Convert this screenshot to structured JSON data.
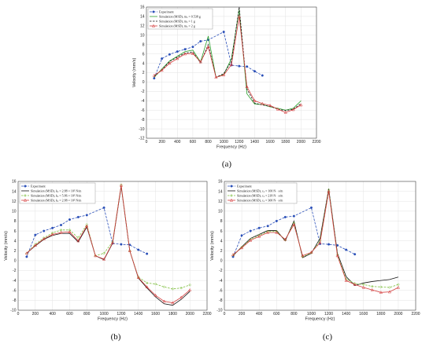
{
  "chart_data": [
    {
      "type": "line",
      "panel": "(a)",
      "xlabel": "Frequency (Hz)",
      "ylabel": "Velocity (mm/s)",
      "xlim": [
        0,
        2200
      ],
      "ylim": [
        -12,
        16
      ],
      "xticks": [
        0,
        200,
        400,
        600,
        800,
        1000,
        1200,
        1400,
        1600,
        1800,
        2000,
        2200
      ],
      "yticks": [
        -12,
        -10,
        -8,
        -6,
        -4,
        -2,
        0,
        2,
        4,
        6,
        8,
        10,
        12,
        14,
        16
      ],
      "grid": true,
      "legend": "top-left",
      "series": [
        {
          "name": "Experiment",
          "color": "#2a4fb8",
          "dash": "3,1.5",
          "marker": "circle",
          "x": [
            100,
            200,
            300,
            400,
            500,
            600,
            700,
            800,
            1000,
            1100,
            1200,
            1300,
            1400,
            1500
          ],
          "y": [
            0.8,
            5.0,
            5.9,
            6.5,
            7.0,
            7.5,
            8.7,
            9.0,
            10.7,
            3.6,
            3.4,
            3.3,
            2.3,
            1.4
          ]
        },
        {
          "name": "Simulation (MSD), m<sub>s</sub> = 0.538 g",
          "label": "Simulation (MSD), mₛ = 0.538 g",
          "color": "#2ca02c",
          "dash": "",
          "marker": "none",
          "x": [
            100,
            200,
            300,
            400,
            500,
            600,
            700,
            800,
            900,
            1000,
            1100,
            1200,
            1300,
            1400,
            1500,
            1600,
            1700,
            1800,
            1900,
            2000
          ],
          "y": [
            1.0,
            2.8,
            4.5,
            5.5,
            6.5,
            6.8,
            4.3,
            9.8,
            1.0,
            1.6,
            5.0,
            15.4,
            -2.5,
            -4.7,
            -4.8,
            -5.3,
            -5.6,
            -6.0,
            -5.6,
            -4.0
          ]
        },
        {
          "name": "Simulation (MSD), m<sub>s</sub> = 1 g",
          "label": "Simulation (MSD), mₛ = 1 g",
          "color": "#111111",
          "dash": "2.5,1.5",
          "marker": "none",
          "x": [
            100,
            200,
            300,
            400,
            500,
            600,
            700,
            800,
            900,
            1000,
            1100,
            1200,
            1300,
            1400,
            1500,
            1600,
            1700,
            1800,
            1900,
            2000
          ],
          "y": [
            1.2,
            2.6,
            4.4,
            5.3,
            6.2,
            6.4,
            4.1,
            8.0,
            1.0,
            1.8,
            4.4,
            16.0,
            -1.5,
            -4.5,
            -4.9,
            -5.2,
            -5.8,
            -6.1,
            -5.8,
            -4.6
          ]
        },
        {
          "name": "Simulation (MSD), m<sub>s</sub> = 2 g",
          "label": "Simulation (MSD), mₛ = 2 g",
          "color": "#d43d3d",
          "dash": "",
          "marker": "triangle",
          "x": [
            100,
            200,
            300,
            400,
            500,
            600,
            700,
            800,
            900,
            1000,
            1100,
            1200,
            1300,
            1400,
            1500,
            1600,
            1700,
            1800,
            1900,
            2000
          ],
          "y": [
            1.4,
            2.5,
            4.0,
            5.0,
            6.0,
            6.1,
            4.3,
            7.5,
            1.0,
            1.5,
            3.7,
            14.0,
            -1.0,
            -4.0,
            -4.6,
            -5.0,
            -5.8,
            -6.5,
            -5.9,
            -4.9
          ]
        }
      ]
    },
    {
      "type": "line",
      "panel": "(b)",
      "xlabel": "Frequency (Hz)",
      "ylabel": "Velocity (mm/s)",
      "xlim": [
        0,
        2200
      ],
      "ylim": [
        -10,
        16
      ],
      "xticks": [
        0,
        200,
        400,
        600,
        800,
        1000,
        1200,
        1400,
        1600,
        1800,
        2000,
        2200
      ],
      "yticks": [
        -10,
        -8,
        -6,
        -4,
        -2,
        0,
        2,
        4,
        6,
        8,
        10,
        12,
        14,
        16
      ],
      "grid": true,
      "legend": "top-left",
      "series": [
        {
          "name": "Experiment",
          "color": "#2a4fb8",
          "dash": "3,1.5",
          "marker": "circle",
          "x": [
            100,
            200,
            300,
            400,
            500,
            600,
            700,
            800,
            1000,
            1100,
            1200,
            1300,
            1400,
            1500
          ],
          "y": [
            0.8,
            5.2,
            6.0,
            6.6,
            7.2,
            8.3,
            8.8,
            9.2,
            10.7,
            3.5,
            3.3,
            3.2,
            2.2,
            1.4
          ]
        },
        {
          "name": "Simulation (MSD), k<sub>s</sub> = 2.88 × 10<sup>5</sup> N/m",
          "label": "Simulation (MSD), kₛ = 2.88 × 10⁵ N/m",
          "color": "#111111",
          "dash": "",
          "marker": "none",
          "x": [
            100,
            200,
            300,
            400,
            500,
            600,
            700,
            800,
            900,
            1000,
            1100,
            1200,
            1300,
            1400,
            1500,
            1600,
            1700,
            1800,
            1900,
            2000
          ],
          "y": [
            1.5,
            3.0,
            4.3,
            5.1,
            5.5,
            5.5,
            3.8,
            6.8,
            1.0,
            0.2,
            3.5,
            15.0,
            2.0,
            -3.5,
            -5.5,
            -7.3,
            -8.7,
            -9.0,
            -7.8,
            -6.2
          ]
        },
        {
          "name": "Simulation (MSD), k<sub>s</sub> = 5.86 × 10<sup>5</sup> N/m",
          "label": "Simulation (MSD), kₛ = 5.86 × 10⁵ N/m",
          "color": "#7fbf3f",
          "dash": "2.5,1.5",
          "marker": "diamond",
          "x": [
            100,
            200,
            300,
            400,
            500,
            600,
            700,
            800,
            900,
            1000,
            1100,
            1200,
            1300,
            1400,
            1500,
            1600,
            1700,
            1800,
            1900,
            2000
          ],
          "y": [
            1.5,
            3.3,
            4.6,
            5.6,
            6.2,
            6.2,
            4.6,
            7.3,
            1.0,
            1.5,
            3.8,
            15.3,
            2.0,
            -3.3,
            -4.5,
            -4.7,
            -5.3,
            -5.7,
            -5.5,
            -4.9
          ]
        },
        {
          "name": "Simulation (MSD), k<sub>s</sub> = 2.88 × 10<sup>5</sup> N/m",
          "label": "Simulation (MSD), kₛ = 2.88 × 10⁵ N/m",
          "color": "#d43d3d",
          "dash": "",
          "marker": "triangle",
          "x": [
            100,
            200,
            300,
            400,
            500,
            600,
            700,
            800,
            900,
            1000,
            1100,
            1200,
            1300,
            1400,
            1500,
            1600,
            1700,
            1800,
            1900,
            2000
          ],
          "y": [
            1.5,
            3.1,
            4.4,
            5.3,
            5.7,
            5.8,
            4.0,
            7.0,
            1.0,
            0.3,
            3.6,
            15.2,
            2.0,
            -3.4,
            -5.3,
            -7.0,
            -8.2,
            -8.5,
            -7.4,
            -5.9
          ]
        }
      ]
    },
    {
      "type": "line",
      "panel": "(c)",
      "xlabel": "Frequency (Hz)",
      "ylabel": "Velocity (mm/s)",
      "xlim": [
        0,
        2200
      ],
      "ylim": [
        -10,
        16
      ],
      "xticks": [
        0,
        200,
        400,
        600,
        800,
        1000,
        1200,
        1400,
        1600,
        1800,
        2000,
        2200
      ],
      "yticks": [
        -10,
        -8,
        -6,
        -4,
        -2,
        0,
        2,
        4,
        6,
        8,
        10,
        12,
        14,
        16
      ],
      "grid": true,
      "legend": "top-left",
      "series": [
        {
          "name": "Experiment",
          "color": "#2a4fb8",
          "dash": "3,1.5",
          "marker": "circle",
          "x": [
            100,
            200,
            300,
            400,
            500,
            600,
            700,
            800,
            1000,
            1100,
            1200,
            1300,
            1400,
            1500
          ],
          "y": [
            0.8,
            5.1,
            6.0,
            6.6,
            7.0,
            8.0,
            8.8,
            9.0,
            10.7,
            3.4,
            3.3,
            3.1,
            2.2,
            1.3
          ]
        },
        {
          "name": "Simulation (MSD), c<sub>s</sub> = 100 N · s/m",
          "label": "Simulation (MSD), cₛ = 100 N · s/m",
          "color": "#111111",
          "dash": "",
          "marker": "none",
          "x": [
            100,
            200,
            300,
            400,
            500,
            600,
            700,
            800,
            900,
            1000,
            1100,
            1200,
            1300,
            1400,
            1500,
            1600,
            1700,
            1800,
            1900,
            2000
          ],
          "y": [
            1.0,
            2.8,
            4.5,
            5.3,
            6.1,
            6.1,
            4.0,
            8.0,
            0.6,
            1.5,
            4.5,
            14.5,
            1.5,
            -3.2,
            -5.0,
            -4.5,
            -4.2,
            -4.0,
            -3.8,
            -3.3
          ]
        },
        {
          "name": "Simulation (MSD), c<sub>s</sub> = 218 N · s/m",
          "label": "Simulation (MSD), cₛ = 218 N · s/m",
          "color": "#7fbf3f",
          "dash": "2.5,1.5",
          "marker": "diamond",
          "x": [
            100,
            200,
            300,
            400,
            500,
            600,
            700,
            800,
            900,
            1000,
            1100,
            1200,
            1300,
            1400,
            1500,
            1600,
            1700,
            1800,
            1900,
            2000
          ],
          "y": [
            1.1,
            2.7,
            4.3,
            5.1,
            5.9,
            5.9,
            4.2,
            7.6,
            0.8,
            1.6,
            4.0,
            14.3,
            1.2,
            -3.7,
            -4.6,
            -4.8,
            -5.2,
            -5.3,
            -5.4,
            -4.8
          ]
        },
        {
          "name": "Simulation (MSD), c<sub>s</sub> = 300 N · s/m",
          "label": "Simulation (MSD), cₛ = 300 N · s/m",
          "color": "#d43d3d",
          "dash": "",
          "marker": "triangle",
          "x": [
            100,
            200,
            300,
            400,
            500,
            600,
            700,
            800,
            900,
            1000,
            1100,
            1200,
            1300,
            1400,
            1500,
            1600,
            1700,
            1800,
            1900,
            2000
          ],
          "y": [
            1.2,
            2.6,
            4.1,
            4.9,
            5.7,
            5.7,
            4.3,
            7.3,
            1.0,
            1.7,
            3.6,
            14.0,
            1.0,
            -4.0,
            -4.8,
            -5.4,
            -5.9,
            -6.4,
            -6.3,
            -5.4
          ]
        }
      ]
    }
  ]
}
